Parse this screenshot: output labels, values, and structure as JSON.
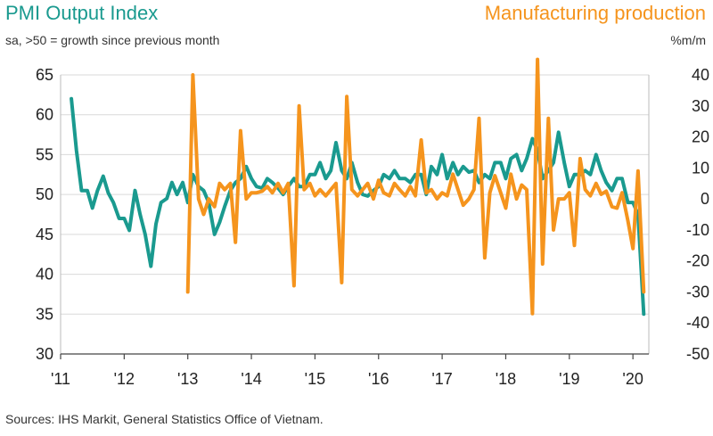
{
  "chart_data": {
    "type": "line",
    "title_left": "PMI Output Index",
    "title_right": "Manufacturing production",
    "subtitle_left": "sa, >50 = growth since previous month",
    "subtitle_right": "%m/m",
    "source": "Sources: IHS Markit, General Statistics Office of Vietnam.",
    "x_tick_labels": [
      "'11",
      "'12",
      "'13",
      "'14",
      "'15",
      "'16",
      "'17",
      "'18",
      "'19",
      "'20"
    ],
    "x_range": [
      2011.0,
      2020.25
    ],
    "y_left": {
      "range": [
        30,
        65
      ],
      "ticks": [
        "65",
        "60",
        "55",
        "50",
        "45",
        "40",
        "35",
        "30"
      ]
    },
    "y_right": {
      "range": [
        -50,
        40
      ],
      "ticks": [
        "40",
        "30",
        "20",
        "10",
        "0",
        "-10",
        "-20",
        "-30",
        "-40",
        "-50"
      ]
    },
    "grid": true,
    "colors": {
      "pmi": "#1a9a8f",
      "production": "#f5941d",
      "grid": "#d9d9d9",
      "zero_line": "#aaaaaa"
    },
    "series": [
      {
        "name": "PMI Output Index",
        "axis": "left",
        "x": [
          2011.17,
          2011.25,
          2011.33,
          2011.42,
          2011.5,
          2011.58,
          2011.67,
          2011.75,
          2011.83,
          2011.92,
          2012.0,
          2012.08,
          2012.17,
          2012.25,
          2012.33,
          2012.42,
          2012.5,
          2012.58,
          2012.67,
          2012.75,
          2012.83,
          2012.92,
          2013.0,
          2013.08,
          2013.17,
          2013.25,
          2013.33,
          2013.42,
          2013.5,
          2013.58,
          2013.67,
          2013.75,
          2013.83,
          2013.92,
          2014.0,
          2014.08,
          2014.17,
          2014.25,
          2014.33,
          2014.42,
          2014.5,
          2014.58,
          2014.67,
          2014.75,
          2014.83,
          2014.92,
          2015.0,
          2015.08,
          2015.17,
          2015.25,
          2015.33,
          2015.42,
          2015.5,
          2015.58,
          2015.67,
          2015.75,
          2015.83,
          2015.92,
          2016.0,
          2016.08,
          2016.17,
          2016.25,
          2016.33,
          2016.42,
          2016.5,
          2016.58,
          2016.67,
          2016.75,
          2016.83,
          2016.92,
          2017.0,
          2017.08,
          2017.17,
          2017.25,
          2017.33,
          2017.42,
          2017.5,
          2017.58,
          2017.67,
          2017.75,
          2017.83,
          2017.92,
          2018.0,
          2018.08,
          2018.17,
          2018.25,
          2018.33,
          2018.42,
          2018.5,
          2018.58,
          2018.67,
          2018.75,
          2018.83,
          2018.92,
          2019.0,
          2019.08,
          2019.17,
          2019.25,
          2019.33,
          2019.42,
          2019.5,
          2019.58,
          2019.67,
          2019.75,
          2019.83,
          2019.92,
          2020.0,
          2020.08,
          2020.17
        ],
        "values": [
          62.0,
          55.5,
          50.5,
          50.5,
          48.3,
          50.5,
          52.3,
          50.2,
          49.0,
          47.0,
          47.0,
          45.5,
          50.5,
          47.5,
          45.0,
          41.0,
          46.3,
          49.0,
          49.5,
          51.5,
          50.0,
          51.5,
          49.0,
          52.5,
          51.0,
          50.5,
          49.0,
          45.0,
          46.5,
          48.5,
          50.5,
          51.5,
          52.0,
          53.5,
          52.0,
          51.0,
          50.8,
          52.0,
          51.5,
          50.8,
          50.0,
          51.0,
          52.0,
          51.0,
          51.0,
          52.5,
          52.5,
          54.0,
          52.0,
          53.0,
          56.5,
          53.0,
          52.0,
          54.0,
          51.5,
          50.0,
          49.8,
          50.5,
          51.0,
          52.5,
          52.0,
          53.0,
          52.0,
          52.0,
          51.5,
          52.5,
          52.5,
          50.0,
          53.5,
          52.5,
          55.0,
          52.0,
          54.0,
          52.5,
          53.5,
          52.8,
          53.0,
          51.5,
          52.5,
          52.0,
          54.0,
          54.0,
          52.0,
          54.5,
          55.0,
          53.0,
          54.5,
          57.0,
          55.5,
          52.0,
          53.0,
          54.0,
          57.8,
          54.0,
          51.0,
          52.5,
          52.5,
          53.0,
          52.5,
          55.0,
          53.0,
          51.5,
          50.5,
          52.0,
          52.0,
          49.0,
          49.0,
          47.5,
          35.0
        ]
      },
      {
        "name": "Manufacturing production",
        "axis": "right",
        "x": [
          2013.0,
          2013.08,
          2013.17,
          2013.25,
          2013.33,
          2013.42,
          2013.5,
          2013.58,
          2013.67,
          2013.75,
          2013.83,
          2013.92,
          2014.0,
          2014.08,
          2014.17,
          2014.25,
          2014.33,
          2014.42,
          2014.5,
          2014.58,
          2014.67,
          2014.75,
          2014.83,
          2014.92,
          2015.0,
          2015.08,
          2015.17,
          2015.25,
          2015.33,
          2015.42,
          2015.5,
          2015.58,
          2015.67,
          2015.75,
          2015.83,
          2015.92,
          2016.0,
          2016.08,
          2016.17,
          2016.25,
          2016.33,
          2016.42,
          2016.5,
          2016.58,
          2016.67,
          2016.75,
          2016.83,
          2016.92,
          2017.0,
          2017.08,
          2017.17,
          2017.25,
          2017.33,
          2017.42,
          2017.5,
          2017.58,
          2017.67,
          2017.75,
          2017.83,
          2017.92,
          2018.0,
          2018.08,
          2018.17,
          2018.25,
          2018.33,
          2018.42,
          2018.5,
          2018.58,
          2018.67,
          2018.75,
          2018.83,
          2018.92,
          2019.0,
          2019.08,
          2019.17,
          2019.25,
          2019.33,
          2019.42,
          2019.5,
          2019.58,
          2019.67,
          2019.75,
          2019.83,
          2019.92,
          2020.0,
          2020.08,
          2020.17
        ],
        "values": [
          -30.0,
          40.0,
          0.0,
          -5.0,
          0.0,
          -2.5,
          5.0,
          3.0,
          5.0,
          -14.0,
          22.0,
          0.0,
          2.0,
          2.0,
          2.5,
          4.0,
          2.0,
          5.0,
          2.0,
          5.0,
          -28.0,
          30.0,
          3.0,
          5.0,
          1.0,
          3.0,
          1.0,
          3.0,
          5.0,
          -27.0,
          33.0,
          3.0,
          1.0,
          3.0,
          5.0,
          0.0,
          6.0,
          2.0,
          1.0,
          5.0,
          3.0,
          1.0,
          4.0,
          1.0,
          19.0,
          2.0,
          3.0,
          0.0,
          2.0,
          1.0,
          8.0,
          3.0,
          -2.0,
          0.0,
          3.0,
          26.0,
          -19.0,
          2.0,
          7.5,
          2.0,
          -3.0,
          8.0,
          0.0,
          4.5,
          3.0,
          -37.0,
          45.0,
          -21.0,
          26.0,
          -10.0,
          0.0,
          0.0,
          2.0,
          -15.0,
          13.0,
          3.0,
          1.0,
          5.0,
          1.5,
          2.5,
          -2.5,
          -3.0,
          2.0,
          -7.0,
          -16.0,
          9.0,
          -30.0
        ]
      }
    ]
  }
}
